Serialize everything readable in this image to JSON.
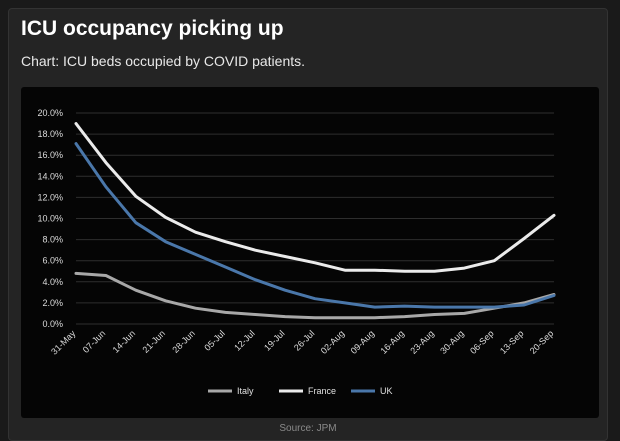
{
  "header": {
    "title": "ICU occupancy picking up",
    "subtitle": "Chart: ICU beds occupied by COVID patients."
  },
  "footer": {
    "source": "Source: JPM"
  },
  "chart_data": {
    "type": "line",
    "categories": [
      "31-May",
      "07-Jun",
      "14-Jun",
      "21-Jun",
      "28-Jun",
      "05-Jul",
      "12-Jul",
      "19-Jul",
      "26-Jul",
      "02-Aug",
      "09-Aug",
      "16-Aug",
      "23-Aug",
      "30-Aug",
      "06-Sep",
      "13-Sep",
      "20-Sep"
    ],
    "yticks": [
      "0.0%",
      "2.0%",
      "4.0%",
      "6.0%",
      "8.0%",
      "10.0%",
      "12.0%",
      "14.0%",
      "16.0%",
      "18.0%",
      "20.0%"
    ],
    "ylim": [
      0,
      20
    ],
    "grid": true,
    "legend_position": "bottom",
    "series": [
      {
        "name": "Italy",
        "color": "#a8a8a8",
        "values": [
          4.8,
          4.6,
          3.2,
          2.2,
          1.5,
          1.1,
          0.9,
          0.7,
          0.6,
          0.6,
          0.6,
          0.7,
          0.9,
          1.0,
          1.5,
          2.0,
          2.8
        ]
      },
      {
        "name": "France",
        "color": "#ebebeb",
        "values": [
          19.0,
          15.3,
          12.1,
          10.1,
          8.7,
          7.8,
          7.0,
          6.4,
          5.8,
          5.1,
          5.1,
          5.0,
          5.0,
          5.3,
          6.0,
          8.1,
          10.3
        ]
      },
      {
        "name": "UK",
        "color": "#4a77aa",
        "values": [
          17.1,
          13.0,
          9.6,
          7.8,
          6.6,
          5.4,
          4.2,
          3.2,
          2.4,
          2.0,
          1.6,
          1.7,
          1.6,
          1.6,
          1.6,
          1.8,
          2.7
        ]
      }
    ]
  }
}
